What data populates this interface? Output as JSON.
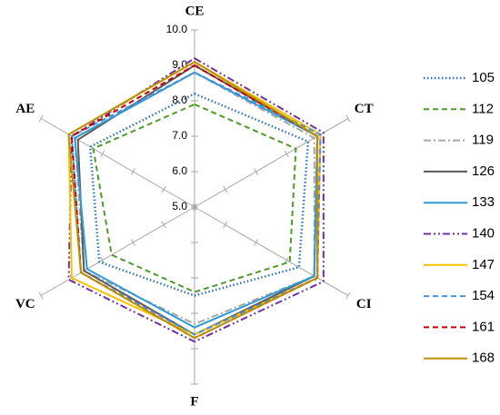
{
  "chart_data": {
    "type": "radar",
    "categories": [
      "CE",
      "CT",
      "CI",
      "F",
      "VC",
      "AE"
    ],
    "rlim": [
      5,
      10
    ],
    "rticks": [
      {
        "value": 5,
        "label": "5.0"
      },
      {
        "value": 6,
        "label": "6.0"
      },
      {
        "value": 7,
        "label": "7.0"
      },
      {
        "value": 8,
        "label": "8.0"
      },
      {
        "value": 9,
        "label": "9.0"
      },
      {
        "value": 10,
        "label": "10.0"
      }
    ],
    "legend": "right",
    "series": [
      {
        "name": "105",
        "color": "#2e75b6",
        "style": "dotted",
        "values": [
          8.2,
          8.7,
          8.4,
          7.5,
          8.1,
          8.4
        ]
      },
      {
        "name": "112",
        "color": "#4e9a2a",
        "style": "dashed",
        "values": [
          7.9,
          8.3,
          8.1,
          7.4,
          7.7,
          8.3
        ]
      },
      {
        "name": "119",
        "color": "#a6a6a6",
        "style": "dashdot",
        "values": [
          8.8,
          8.9,
          8.9,
          8.3,
          8.6,
          8.9
        ]
      },
      {
        "name": "126",
        "color": "#595959",
        "style": "solid",
        "values": [
          9.0,
          9.0,
          8.9,
          8.6,
          8.6,
          8.8
        ]
      },
      {
        "name": "133",
        "color": "#2e9bd6",
        "style": "solid",
        "values": [
          8.8,
          9.0,
          8.9,
          8.4,
          8.5,
          8.9
        ]
      },
      {
        "name": "140",
        "color": "#7030a0",
        "style": "dashdotdot",
        "values": [
          9.2,
          9.2,
          9.2,
          8.8,
          9.1,
          9.0
        ]
      },
      {
        "name": "147",
        "color": "#f2c200",
        "style": "solid",
        "values": [
          9.1,
          9.1,
          9.0,
          8.6,
          9.0,
          9.1
        ]
      },
      {
        "name": "154",
        "color": "#4a90d9",
        "style": "dashed",
        "values": [
          8.8,
          9.1,
          9.0,
          8.6,
          8.7,
          9.0
        ]
      },
      {
        "name": "161",
        "color": "#c00000",
        "style": "dashed",
        "values": [
          9.0,
          9.0,
          9.0,
          8.7,
          8.7,
          9.0
        ]
      },
      {
        "name": "168",
        "color": "#bf9000",
        "style": "solid",
        "values": [
          9.1,
          9.0,
          9.0,
          8.7,
          8.7,
          9.1
        ]
      }
    ]
  }
}
